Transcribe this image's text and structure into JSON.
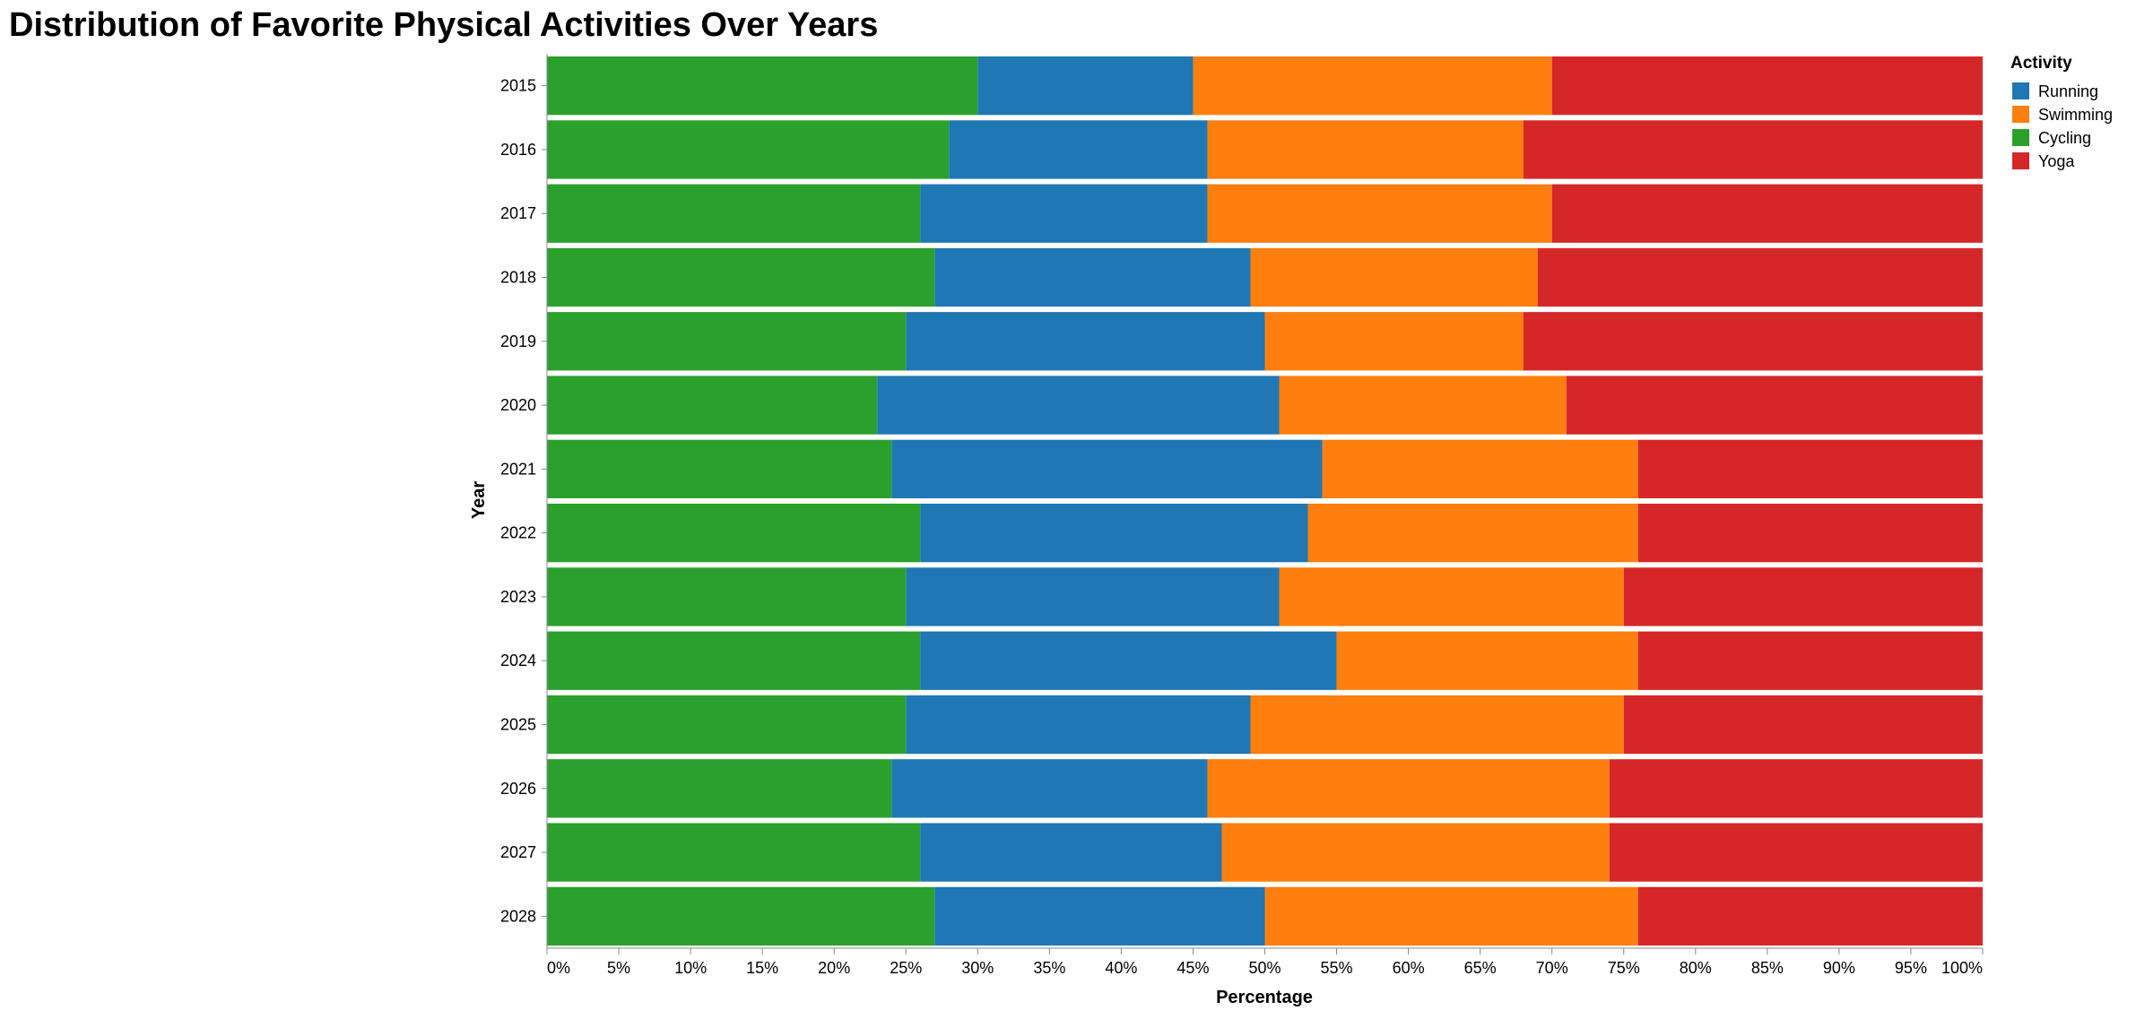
{
  "chart_data": {
    "type": "bar",
    "orientation": "horizontal",
    "stacked": "normalized",
    "title": "Distribution of Favorite Physical Activities Over Years",
    "xlabel": "Percentage",
    "ylabel": "Year",
    "xlim": [
      0,
      100
    ],
    "x_ticks": [
      "0%",
      "5%",
      "10%",
      "15%",
      "20%",
      "25%",
      "30%",
      "35%",
      "40%",
      "45%",
      "50%",
      "55%",
      "60%",
      "65%",
      "70%",
      "75%",
      "80%",
      "85%",
      "90%",
      "95%",
      "100%"
    ],
    "categories": [
      "2015",
      "2016",
      "2017",
      "2018",
      "2019",
      "2020",
      "2021",
      "2022",
      "2023",
      "2024",
      "2025",
      "2026",
      "2027",
      "2028"
    ],
    "stack_order": [
      "Cycling",
      "Running",
      "Swimming",
      "Yoga"
    ],
    "series": [
      {
        "name": "Running",
        "color": "#1f77b4",
        "values": [
          15,
          18,
          20,
          22,
          25,
          28,
          30,
          27,
          26,
          29,
          24,
          22,
          21,
          23
        ]
      },
      {
        "name": "Swimming",
        "color": "#ff7f0e",
        "values": [
          25,
          22,
          24,
          20,
          18,
          20,
          22,
          23,
          24,
          21,
          26,
          28,
          27,
          26
        ]
      },
      {
        "name": "Cycling",
        "color": "#2ca02c",
        "values": [
          30,
          28,
          26,
          27,
          25,
          23,
          24,
          26,
          25,
          26,
          25,
          24,
          26,
          27
        ]
      },
      {
        "name": "Yoga",
        "color": "#d62728",
        "values": [
          30,
          32,
          30,
          31,
          32,
          29,
          24,
          24,
          25,
          24,
          25,
          26,
          26,
          24
        ]
      }
    ],
    "legend": {
      "title": "Activity",
      "placement": "top-right",
      "entries": [
        "Running",
        "Swimming",
        "Cycling",
        "Yoga"
      ]
    },
    "grid": false
  }
}
